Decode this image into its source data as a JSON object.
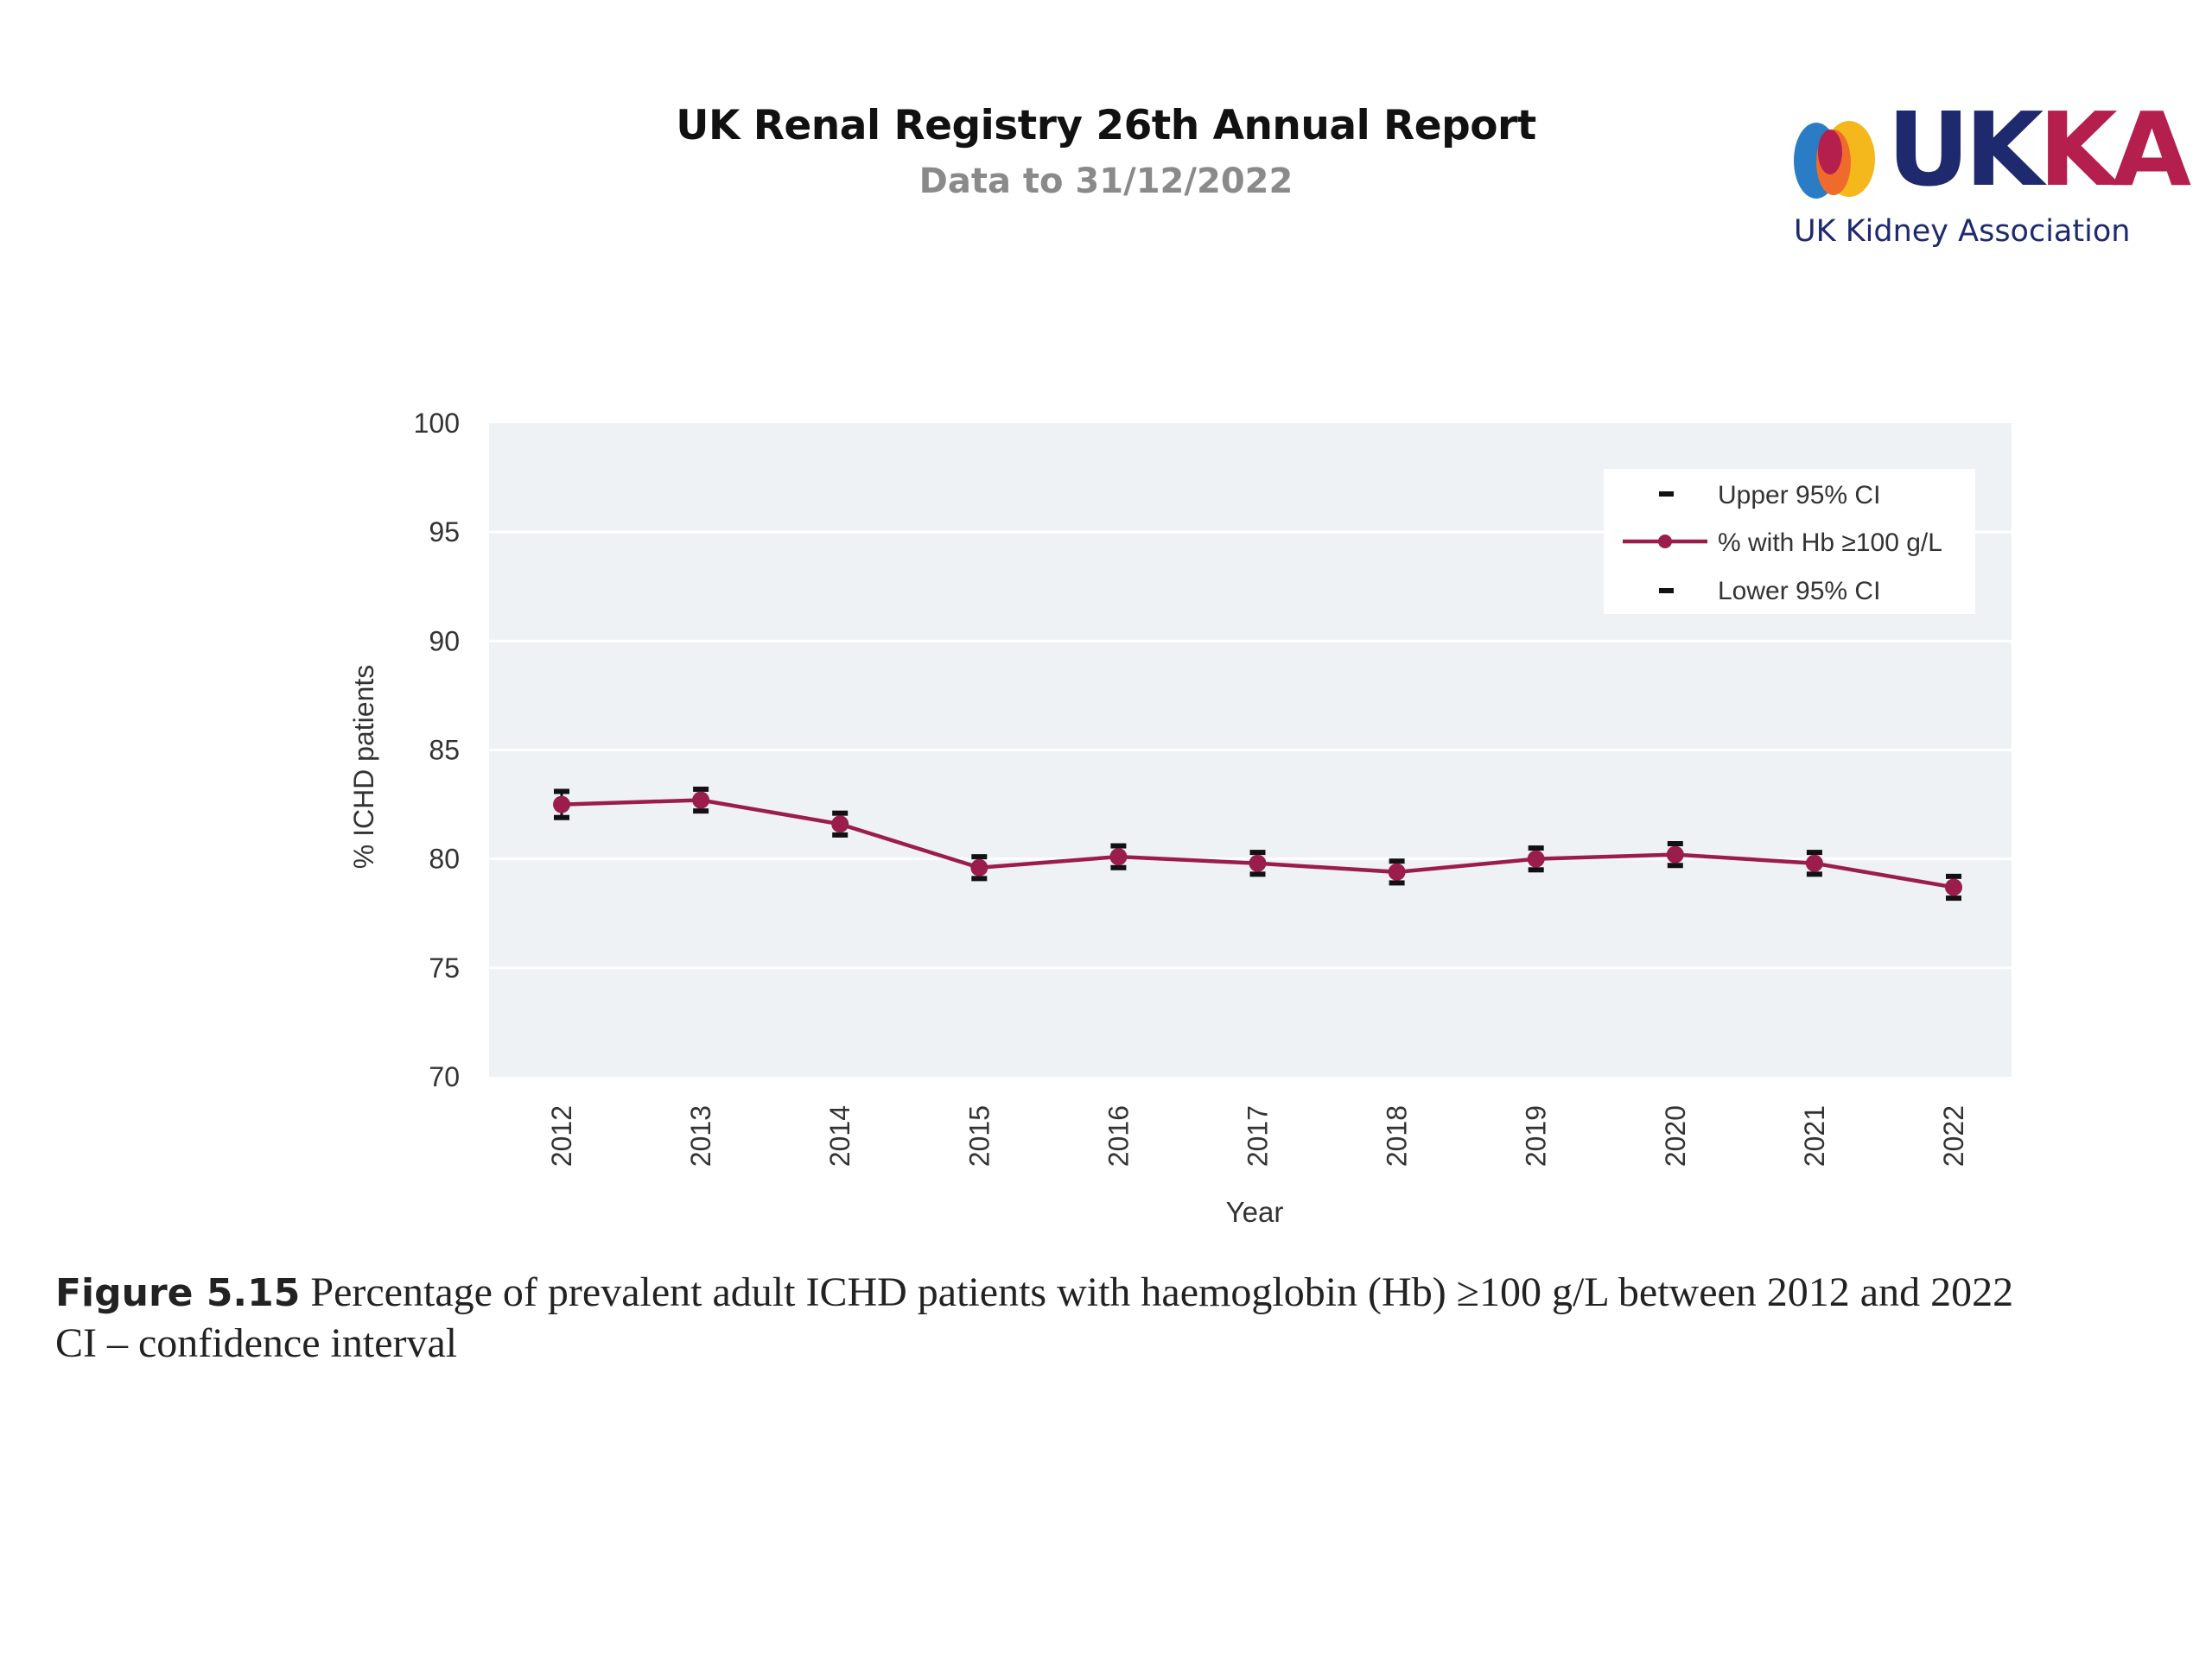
{
  "header": {
    "title": "UK Renal Registry 26th Annual Report",
    "subtitle": "Data to 31/12/2022"
  },
  "logo": {
    "word_uk": "UK",
    "word_ka": "KA",
    "tagline": "UK Kidney Association",
    "colors": {
      "navy": "#1f2a6e",
      "crimson": "#b51f4e",
      "yellow": "#f4b81c",
      "orange": "#ef6b2c",
      "blue": "#2a7dc4"
    }
  },
  "caption": {
    "figure_label": "Figure 5.15",
    "text": "Percentage of prevalent adult ICHD patients with haemoglobin (Hb) ≥100 g/L between 2012 and 2022",
    "note": "CI – confidence interval"
  },
  "chart_data": {
    "type": "line",
    "xlabel": "Year",
    "ylabel": "% ICHD patients",
    "ylim": [
      70,
      100
    ],
    "yticks": [
      70,
      75,
      80,
      85,
      90,
      95,
      100
    ],
    "grid": true,
    "legend_position": "top-right",
    "legend": [
      "Upper 95% CI",
      "% with Hb ≥100 g/L",
      "Lower 95% CI"
    ],
    "series_color": "#9b1d4b",
    "ci_color": "#111111",
    "plot_background": "#eef2f4",
    "categories": [
      "2012",
      "2013",
      "2014",
      "2015",
      "2016",
      "2017",
      "2018",
      "2019",
      "2020",
      "2021",
      "2022"
    ],
    "series": [
      {
        "name": "% with Hb ≥100 g/L",
        "values": [
          82.5,
          82.7,
          81.6,
          79.6,
          80.1,
          79.8,
          79.4,
          80.0,
          80.2,
          79.8,
          78.7
        ]
      },
      {
        "name": "Upper 95% CI",
        "values": [
          83.1,
          83.2,
          82.1,
          80.1,
          80.6,
          80.3,
          79.9,
          80.5,
          80.7,
          80.3,
          79.2
        ]
      },
      {
        "name": "Lower 95% CI",
        "values": [
          81.9,
          82.2,
          81.1,
          79.1,
          79.6,
          79.3,
          78.9,
          79.5,
          79.7,
          79.3,
          78.2
        ]
      }
    ]
  }
}
